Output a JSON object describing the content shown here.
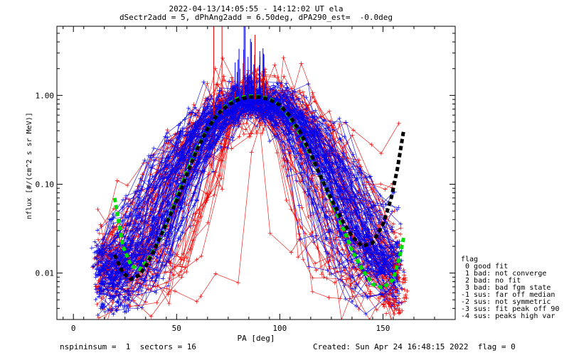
{
  "header": {
    "title_line1": "2022-04-13/14:05:55 - 14:12:02 UT ela",
    "title_line2": "dSectr2add = 5, dPhAng2add = 6.50deg, dPA290_est=  -0.0deg"
  },
  "footer": {
    "left": "nspininsum =  1  sectors = 16",
    "right": "Created: Sun Apr 24 16:48:15 2022  flag = 0"
  },
  "legend": {
    "title": "flag",
    "items": [
      " 0 good fit",
      " 1 bad: not converge",
      " 2 bad: no fit",
      " 3 bad: bad fgm state",
      "-1 sus: far off median",
      "-2 sus: not symmetric",
      "-3 sus: fit peak off 90",
      "-4 sus: peaks high var"
    ]
  },
  "colors": {
    "red_traces": "#ee0000",
    "blue_traces": "#0000ee",
    "green_fit": "#00dd00",
    "black_fit": "#000000"
  },
  "chart_data": {
    "type": "line",
    "title": "2022-04-13/14:05:55 - 14:12:02 UT ela",
    "subtitle": "dSectr2add = 5, dPhAng2add = 6.50deg, dPA290_est=  -0.0deg",
    "xlabel": "PA [deg]",
    "ylabel": "nflux [#/(cm^2 s sr MeV)]",
    "xlim": [
      -8,
      185
    ],
    "ylim": [
      0.003,
      6.0
    ],
    "yscale": "log",
    "x_ticks": [
      0,
      50,
      100,
      150
    ],
    "y_ticks": [
      {
        "value": 0.01,
        "label": "0.01"
      },
      {
        "value": 0.1,
        "label": "0.10"
      },
      {
        "value": 1.0,
        "label": "1.00"
      }
    ],
    "series": [
      {
        "style": "dotted-thick",
        "color": "#00dd00",
        "x": [
          20,
          24,
          28,
          32,
          36,
          40,
          45,
          50,
          55,
          60,
          65,
          70,
          75,
          80,
          85,
          90,
          95,
          100,
          105,
          110,
          115,
          120,
          125,
          130,
          135,
          140,
          145,
          150,
          155,
          158,
          160
        ],
        "y": [
          0.07,
          0.02,
          0.012,
          0.011,
          0.014,
          0.02,
          0.035,
          0.07,
          0.14,
          0.26,
          0.42,
          0.62,
          0.8,
          0.93,
          0.98,
          0.97,
          0.92,
          0.78,
          0.56,
          0.36,
          0.21,
          0.12,
          0.065,
          0.035,
          0.018,
          0.011,
          0.0075,
          0.0068,
          0.0085,
          0.015,
          0.025
        ]
      },
      {
        "style": "dotted-thick",
        "color": "#000000",
        "x": [
          20,
          24,
          28,
          32,
          36,
          40,
          45,
          50,
          55,
          60,
          65,
          70,
          75,
          80,
          85,
          90,
          95,
          100,
          105,
          110,
          115,
          120,
          125,
          130,
          135,
          140,
          145,
          150,
          154,
          157,
          160
        ],
        "y": [
          0.016,
          0.01,
          0.0085,
          0.0095,
          0.013,
          0.02,
          0.036,
          0.065,
          0.13,
          0.25,
          0.42,
          0.62,
          0.78,
          0.9,
          0.96,
          0.96,
          0.9,
          0.78,
          0.58,
          0.38,
          0.22,
          0.12,
          0.068,
          0.04,
          0.026,
          0.02,
          0.022,
          0.035,
          0.07,
          0.15,
          0.4
        ]
      }
    ],
    "traces_description_red_count": 60,
    "traces_description_blue_count": 90
  }
}
